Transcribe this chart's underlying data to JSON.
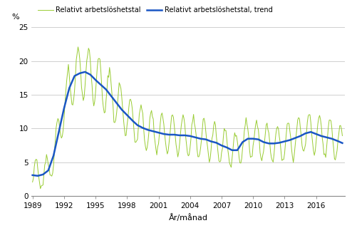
{
  "ylabel": "%",
  "xlabel": "År/månad",
  "legend_raw": "Relativt arbetslöshetstal",
  "legend_trend": "Relativt arbetslöshetstal, trend",
  "line_color_raw": "#99cc33",
  "line_color_trend": "#1a56c4",
  "yticks": [
    0,
    5,
    10,
    15,
    20,
    25
  ],
  "xticks_years": [
    1989,
    1992,
    1995,
    1998,
    2001,
    2004,
    2007,
    2010,
    2013,
    2016
  ],
  "ylim": [
    0,
    25
  ],
  "xlim_start": 1988.92,
  "xlim_end": 2018.75,
  "trend_anchors_x": [
    1989.0,
    1989.5,
    1990.0,
    1990.5,
    1991.0,
    1991.5,
    1992.0,
    1992.5,
    1993.0,
    1993.5,
    1994.0,
    1994.5,
    1995.0,
    1995.5,
    1996.0,
    1996.5,
    1997.0,
    1997.5,
    1998.0,
    1998.5,
    1999.0,
    1999.5,
    2000.0,
    2000.5,
    2001.0,
    2001.5,
    2002.0,
    2002.5,
    2003.0,
    2003.5,
    2004.0,
    2004.5,
    2005.0,
    2005.5,
    2006.0,
    2006.5,
    2007.0,
    2007.5,
    2008.0,
    2008.5,
    2009.0,
    2009.5,
    2010.0,
    2010.5,
    2011.0,
    2011.5,
    2012.0,
    2012.5,
    2013.0,
    2013.5,
    2014.0,
    2014.5,
    2015.0,
    2015.5,
    2016.0,
    2016.5,
    2017.0,
    2017.5,
    2018.0,
    2018.583
  ],
  "trend_anchors_y": [
    3.1,
    3.0,
    3.2,
    3.8,
    6.0,
    9.5,
    13.0,
    16.0,
    17.8,
    18.2,
    18.4,
    18.0,
    17.2,
    16.5,
    15.8,
    14.8,
    13.8,
    12.8,
    12.0,
    11.2,
    10.5,
    10.1,
    9.8,
    9.6,
    9.4,
    9.2,
    9.1,
    9.1,
    9.0,
    9.0,
    8.9,
    8.7,
    8.5,
    8.4,
    8.1,
    7.9,
    7.5,
    7.2,
    6.8,
    6.8,
    8.0,
    8.5,
    8.5,
    8.4,
    8.0,
    7.8,
    7.8,
    7.9,
    8.1,
    8.3,
    8.6,
    8.9,
    9.3,
    9.5,
    9.2,
    8.9,
    8.7,
    8.5,
    8.2,
    7.8
  ],
  "seasonal_amplitude_base": 1.8,
  "seasonal_amplitude_scale": 0.12,
  "noise_std": 0.25
}
